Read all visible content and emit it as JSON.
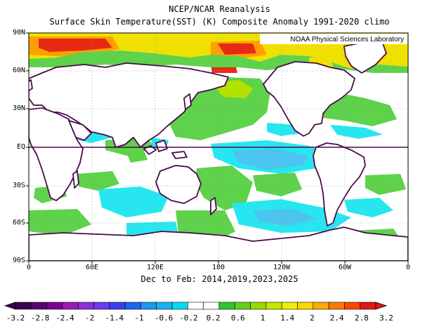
{
  "title": "NCEP/NCAR Reanalysis",
  "subtitle": "Surface Skin Temperature(SST) (K) Composite Anomaly 1991-2020 climo",
  "credit": "NOAA Physical Sciences Laboratory",
  "period": "Dec to Feb: 2014,2019,2023,2025",
  "lat_labels": [
    "90N",
    "60N",
    "30N",
    "EQ",
    "30S",
    "60S",
    "90S"
  ],
  "lon_labels": [
    "0",
    "60E",
    "120E",
    "180",
    "120W",
    "60W",
    "0"
  ],
  "colorbar": {
    "labels": [
      "-3.2",
      "-2.8",
      "-2.4",
      "-2",
      "-1.4",
      "-1",
      "-0.6",
      "-0.2",
      "0.2",
      "0.6",
      "1",
      "1.4",
      "2",
      "2.4",
      "2.8",
      "3.2"
    ],
    "colors": [
      "#3b0050",
      "#5a006e",
      "#7a0096",
      "#9a1ab8",
      "#8c2fdc",
      "#6a3cf0",
      "#3c3cf5",
      "#1e64f0",
      "#1e96f0",
      "#14b4f0",
      "#00dcf0",
      "#ffffff",
      "#ffffff",
      "#28c828",
      "#64d214",
      "#96dc00",
      "#c8e600",
      "#f0f000",
      "#ffd700",
      "#ffaa00",
      "#ff7800",
      "#ff4600",
      "#e61414"
    ]
  },
  "palette": {
    "coast": "#4a0a4a",
    "cyan": "#28e6f0",
    "lightblue": "#4cc4f0",
    "green": "#5ed24a",
    "yellowgreen": "#b4e100",
    "yellow": "#f5e600",
    "orange": "#ffa000",
    "red": "#e62a14"
  }
}
